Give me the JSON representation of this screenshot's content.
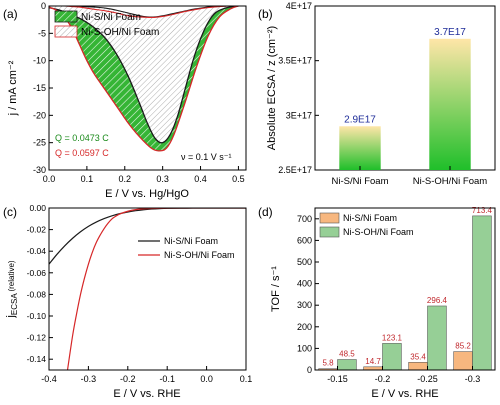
{
  "chart_data": [
    {
      "panel": "(a)",
      "type": "line",
      "xlabel": "E / V vs. Hg/HgO",
      "ylabel": "j / mA cm⁻²",
      "xlim": [
        0,
        0.52
      ],
      "ylim": [
        -30,
        0
      ],
      "xticks": [
        "0.0",
        "0.1",
        "0.2",
        "0.3",
        "0.4",
        "0.5"
      ],
      "yticks": [
        "0",
        "-5",
        "-10",
        "-15",
        "-20",
        "-25",
        "-30"
      ],
      "series": [
        {
          "name": "Ni-S/Ni Foam",
          "color": "#1b1b1b",
          "x": [
            0.0,
            0.03,
            0.06,
            0.09,
            0.12,
            0.15,
            0.18,
            0.21,
            0.24,
            0.26,
            0.28,
            0.3,
            0.32,
            0.34,
            0.36,
            0.38,
            0.4,
            0.42,
            0.44,
            0.47,
            0.5
          ],
          "y": [
            -0.3,
            -0.8,
            -1.6,
            -2.6,
            -4.0,
            -6.0,
            -9.0,
            -13.0,
            -18.0,
            -21.5,
            -24.2,
            -25.0,
            -23.5,
            -20.0,
            -15.0,
            -10.0,
            -6.0,
            -3.0,
            -1.2,
            -0.3,
            0.0
          ],
          "lower_y": [
            0.0,
            0.0,
            0.0,
            -0.1,
            -0.2,
            -0.4,
            -0.8,
            -1.3,
            -1.8,
            -2.0,
            -2.0,
            -1.8,
            -1.5,
            -1.2,
            -0.9,
            -0.6,
            -0.4,
            -0.2,
            -0.1,
            0.0,
            0.0
          ]
        },
        {
          "name": "Ni-S-OH/Ni Foam",
          "color": "#d62728",
          "x": [
            0.0,
            0.02,
            0.04,
            0.06,
            0.08,
            0.1,
            0.12,
            0.15,
            0.18,
            0.21,
            0.24,
            0.27,
            0.29,
            0.31,
            0.33,
            0.36,
            0.39,
            0.42,
            0.45,
            0.48,
            0.5
          ],
          "y": [
            -0.2,
            -0.8,
            -2.0,
            -4.0,
            -7.0,
            -10.0,
            -12.5,
            -15.5,
            -18.5,
            -21.5,
            -24.0,
            -26.0,
            -26.5,
            -26.0,
            -23.5,
            -17.5,
            -11.0,
            -5.5,
            -2.0,
            -0.5,
            0.0
          ],
          "lower_y": [
            0.0,
            0.0,
            0.0,
            -0.1,
            -0.2,
            -0.4,
            -0.6,
            -0.9,
            -1.3,
            -1.8,
            -2.0,
            -2.1,
            -2.0,
            -1.8,
            -1.5,
            -1.0,
            -0.6,
            -0.3,
            -0.1,
            0.0,
            0.0
          ]
        }
      ],
      "annotations": [
        {
          "text": "Q = 0.0473 C",
          "color": "#1a8a1a"
        },
        {
          "text": "Q = 0.0597 C",
          "color": "#d62728"
        },
        {
          "text": "ν = 0.1 V s⁻¹",
          "color": "#000000"
        }
      ],
      "legend_position": "top-left"
    },
    {
      "panel": "(b)",
      "type": "bar",
      "ylabel": "Absolute ECSA / z (cm⁻²)",
      "categories": [
        "Ni-S/Ni Foam",
        "Ni-S-OH/Ni Foam"
      ],
      "values": [
        2.9e+17,
        3.7e+17
      ],
      "data_labels": [
        "2.9E17",
        "3.7E17"
      ],
      "ylim": [
        2.5e+17,
        4e+17
      ],
      "yticks": [
        "2.5E+17",
        "3E+17",
        "3.5E+17",
        "4E+17"
      ],
      "bar_gradient": [
        "#ffe6a8",
        "#1fbf2a"
      ],
      "label_color": "#1f2d99"
    },
    {
      "panel": "(c)",
      "type": "line",
      "xlabel": "E / V vs. RHE",
      "ylabel_main": "j",
      "ylabel_sub": "ECSA",
      "ylabel_tail": " (relative)",
      "xlim": [
        -0.4,
        0.1
      ],
      "ylim": [
        -0.15,
        0
      ],
      "xticks": [
        "-0.4",
        "-0.3",
        "-0.2",
        "-0.1",
        "0.0",
        "0.1"
      ],
      "yticks": [
        "0.00",
        "-0.02",
        "-0.04",
        "-0.06",
        "-0.08",
        "-0.10",
        "-0.12",
        "-0.14"
      ],
      "series": [
        {
          "name": "Ni-S/Ni Foam",
          "color": "#1b1b1b",
          "x": [
            -0.4,
            -0.38,
            -0.36,
            -0.34,
            -0.32,
            -0.3,
            -0.28,
            -0.26,
            -0.24,
            -0.22,
            -0.2,
            -0.18,
            -0.16,
            -0.14,
            -0.12,
            -0.1,
            -0.05,
            0.0,
            0.1
          ],
          "y": [
            -0.052,
            -0.043,
            -0.035,
            -0.028,
            -0.022,
            -0.017,
            -0.013,
            -0.0098,
            -0.0072,
            -0.0052,
            -0.0037,
            -0.0025,
            -0.0016,
            -0.001,
            -0.0006,
            -0.0003,
            -0.0001,
            0.0,
            0.0
          ]
        },
        {
          "name": "Ni-S-OH/Ni Foam",
          "color": "#d62728",
          "x": [
            -0.353,
            -0.34,
            -0.33,
            -0.32,
            -0.31,
            -0.3,
            -0.29,
            -0.28,
            -0.27,
            -0.26,
            -0.25,
            -0.24,
            -0.23,
            -0.22,
            -0.2,
            -0.18,
            -0.15,
            -0.1,
            0.0,
            0.1
          ],
          "y": [
            -0.15,
            -0.118,
            -0.098,
            -0.08,
            -0.065,
            -0.052,
            -0.041,
            -0.032,
            -0.025,
            -0.019,
            -0.014,
            -0.01,
            -0.0075,
            -0.0055,
            -0.003,
            -0.0015,
            -0.0006,
            -0.0001,
            0.0,
            0.0
          ]
        }
      ],
      "legend_position": "center-right"
    },
    {
      "panel": "(d)",
      "type": "bar",
      "xlabel": "E / V vs. RHE",
      "ylabel": "TOF / s⁻¹",
      "categories": [
        "-0.15",
        "-0.2",
        "-0.25",
        "-0.3"
      ],
      "ylim": [
        0,
        750
      ],
      "yticks": [
        "0",
        "100",
        "200",
        "300",
        "400",
        "500",
        "600",
        "700"
      ],
      "series": [
        {
          "name": "Ni-S/Ni Foam",
          "color": "#f7b77f",
          "values": [
            5.8,
            14.7,
            35.4,
            85.2
          ],
          "labels": [
            "5.8",
            "14.7",
            "35.4",
            "85.2"
          ]
        },
        {
          "name": "Ni-S-OH/Ni Foam",
          "color": "#96cf96",
          "values": [
            48.5,
            123.1,
            296.4,
            713.4
          ],
          "labels": [
            "48.5",
            "123.1",
            "296.4",
            "713.4"
          ]
        }
      ],
      "label_color": "#c0282d",
      "legend_position": "top-left"
    }
  ]
}
